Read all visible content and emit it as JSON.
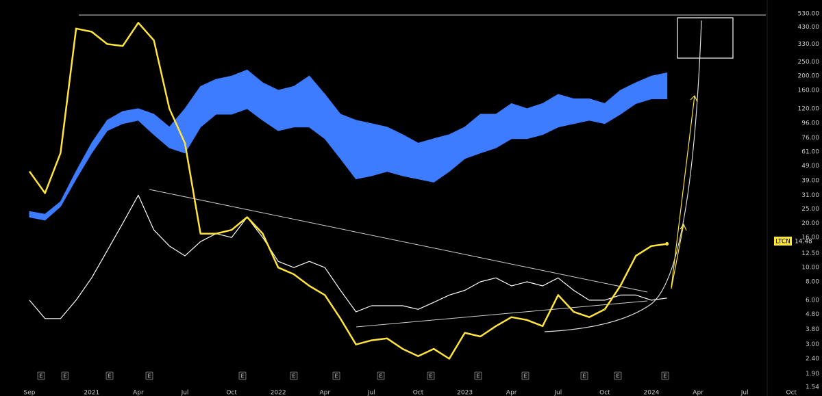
{
  "chart_data": {
    "type": "line",
    "log_scale": true,
    "ylim": [
      1.54,
      657
    ],
    "yticks": [
      {
        "value": 530,
        "label": "530.00"
      },
      {
        "value": 430,
        "label": "430.00"
      },
      {
        "value": 330,
        "label": "330.00"
      },
      {
        "value": 250,
        "label": "250.00"
      },
      {
        "value": 200,
        "label": "200.00"
      },
      {
        "value": 160,
        "label": "160.00"
      },
      {
        "value": 120,
        "label": "120.00"
      },
      {
        "value": 96,
        "label": "96.00"
      },
      {
        "value": 76,
        "label": "76.00"
      },
      {
        "value": 61,
        "label": "61.00"
      },
      {
        "value": 49,
        "label": "49.00"
      },
      {
        "value": 39,
        "label": "39.00"
      },
      {
        "value": 31,
        "label": "31.00"
      },
      {
        "value": 25,
        "label": "25.00"
      },
      {
        "value": 20,
        "label": "20.00"
      },
      {
        "value": 16,
        "label": "16.00"
      },
      {
        "value": 12.5,
        "label": "12.50"
      },
      {
        "value": 10,
        "label": "10.00"
      },
      {
        "value": 8,
        "label": "8.00"
      },
      {
        "value": 6,
        "label": "6.00"
      },
      {
        "value": 4.8,
        "label": "4.80"
      },
      {
        "value": 3.8,
        "label": "3.80"
      },
      {
        "value": 3,
        "label": "3.00"
      },
      {
        "value": 2.4,
        "label": "2.40"
      },
      {
        "value": 1.9,
        "label": "1.90"
      },
      {
        "value": 1.54,
        "label": "1.54"
      }
    ],
    "categories": [
      "Sep",
      null,
      null,
      null,
      "2021",
      null,
      null,
      "Apr",
      null,
      null,
      "Jul",
      null,
      null,
      "Oct",
      null,
      null,
      "2022",
      null,
      null,
      "Apr",
      null,
      null,
      "Jul",
      null,
      null,
      "Oct",
      null,
      null,
      "2023",
      null,
      null,
      "Apr",
      null,
      null,
      "Jul",
      null,
      null,
      "Oct",
      null,
      null,
      "2024",
      null,
      null,
      "Apr",
      null,
      null,
      "Jul",
      null,
      null,
      "Oct"
    ],
    "series": [
      {
        "name": "LTCN",
        "color": "#ffe53b",
        "values": [
          45,
          32,
          60,
          420,
          400,
          330,
          320,
          460,
          350,
          120,
          70,
          17,
          17,
          18,
          22,
          17,
          10,
          9,
          7.5,
          6.5,
          4.5,
          3,
          3.2,
          3.3,
          2.8,
          2.5,
          2.8,
          2.4,
          3.6,
          3.4,
          4,
          4.6,
          4.4,
          4,
          6.5,
          5,
          4.6,
          5.2,
          7.5,
          12,
          14,
          14.48,
          null,
          null,
          null,
          null,
          null,
          null,
          null,
          null
        ]
      },
      {
        "color": "#ffffff",
        "values": [
          6,
          4.5,
          4.5,
          6,
          8.5,
          13,
          20,
          31,
          18,
          14,
          12,
          15,
          17,
          16,
          22,
          16,
          11,
          10,
          11,
          10,
          7,
          5,
          5.5,
          5.5,
          5.5,
          5.2,
          5.8,
          6.5,
          7,
          8,
          8.5,
          7.5,
          8,
          7.5,
          8.5,
          7,
          6,
          6,
          6.5,
          6.5,
          6,
          6.2,
          null,
          null,
          null,
          null,
          null,
          null,
          null,
          null
        ]
      },
      {
        "color": "#3d7bff",
        "values": [
          24,
          23,
          28,
          45,
          70,
          100,
          115,
          120,
          110,
          90,
          120,
          170,
          190,
          200,
          220,
          180,
          160,
          170,
          200,
          150,
          110,
          100,
          95,
          90,
          80,
          70,
          75,
          80,
          90,
          110,
          110,
          130,
          120,
          130,
          150,
          140,
          140,
          130,
          160,
          180,
          200,
          210,
          null,
          null,
          null,
          null,
          null,
          null,
          null,
          null
        ]
      },
      {
        "color": "#3d7bff",
        "values": [
          22,
          21,
          26,
          40,
          60,
          85,
          95,
          100,
          80,
          65,
          60,
          90,
          110,
          110,
          120,
          100,
          85,
          90,
          90,
          75,
          55,
          40,
          42,
          45,
          42,
          40,
          38,
          45,
          55,
          60,
          65,
          75,
          75,
          80,
          90,
          95,
          100,
          95,
          110,
          130,
          140,
          140,
          null,
          null,
          null,
          null,
          null,
          null,
          null,
          null
        ]
      }
    ],
    "event_label": "E"
  }
}
